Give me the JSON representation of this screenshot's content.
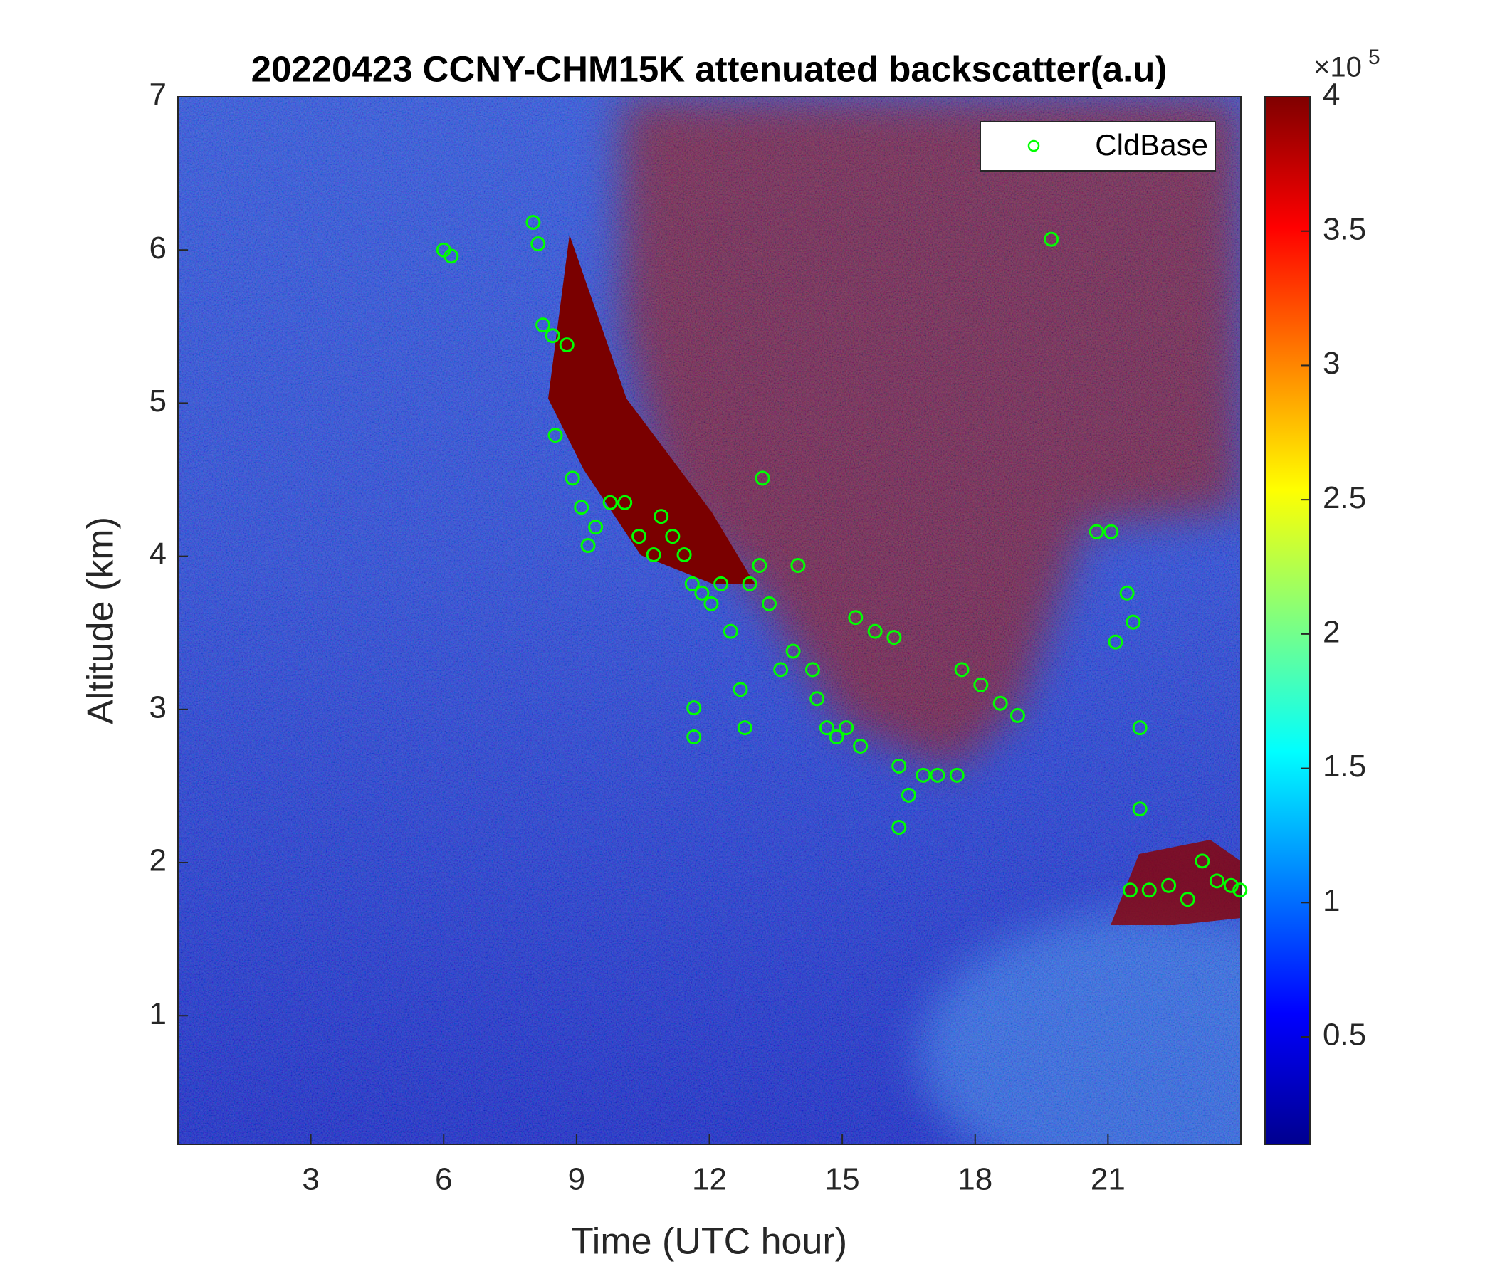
{
  "chart_data": {
    "type": "scatter",
    "title": "20220423 CCNY-CHM15K attenuated backscatter(a.u)",
    "x_label": "Time (UTC hour)",
    "y_label": "Altitude (km)",
    "xlim": [
      0,
      24
    ],
    "ylim": [
      0.16,
      7
    ],
    "xticks": [
      3,
      6,
      9,
      12,
      15,
      18,
      21
    ],
    "yticks": [
      1,
      2,
      3,
      4,
      5,
      6,
      7
    ],
    "legend_position": "upper right",
    "series": [
      {
        "name": "CldBase",
        "color": "#00ff00",
        "marker": "open-circle",
        "x": [
          6.0,
          6.17,
          8.02,
          8.13,
          8.24,
          8.46,
          8.78,
          8.52,
          8.91,
          9.11,
          9.26,
          9.43,
          9.76,
          10.09,
          10.41,
          10.74,
          10.91,
          11.17,
          11.43,
          11.61,
          11.83,
          12.04,
          12.26,
          12.48,
          12.7,
          12.8,
          11.65,
          11.65,
          12.91,
          13.13,
          13.2,
          13.35,
          13.61,
          13.89,
          14.0,
          14.33,
          14.43,
          14.65,
          14.87,
          15.09,
          15.41,
          15.3,
          15.74,
          16.17,
          16.28,
          16.5,
          16.83,
          17.15,
          17.59,
          16.28,
          17.7,
          18.13,
          18.57,
          18.96,
          19.72,
          20.74,
          21.07,
          21.17,
          21.43,
          21.57,
          21.72,
          21.72,
          21.5,
          21.93,
          22.37,
          22.8,
          23.13,
          23.46,
          23.78,
          23.98
        ],
        "y": [
          6.0,
          5.96,
          6.18,
          6.04,
          5.51,
          5.44,
          5.38,
          4.79,
          4.51,
          4.32,
          4.07,
          4.19,
          4.35,
          4.35,
          4.13,
          4.01,
          4.26,
          4.13,
          4.01,
          3.82,
          3.76,
          3.69,
          3.82,
          3.51,
          3.13,
          2.88,
          3.01,
          2.82,
          3.82,
          3.94,
          4.51,
          3.69,
          3.26,
          3.38,
          3.94,
          3.26,
          3.07,
          2.88,
          2.82,
          2.88,
          2.76,
          3.6,
          3.51,
          3.47,
          2.63,
          2.44,
          2.57,
          2.57,
          2.57,
          2.23,
          3.26,
          3.16,
          3.04,
          2.96,
          6.07,
          4.16,
          4.16,
          3.44,
          3.76,
          3.57,
          2.88,
          2.35,
          1.82,
          1.82,
          1.85,
          1.76,
          2.01,
          1.88,
          1.85,
          1.82
        ]
      }
    ],
    "colorbar": {
      "clim": [
        0.1,
        4
      ],
      "ticks": [
        0.5,
        1,
        1.5,
        2,
        2.5,
        3,
        3.5,
        4
      ],
      "multiplier": "×10",
      "exponent": "5",
      "colormap": "jet"
    }
  }
}
